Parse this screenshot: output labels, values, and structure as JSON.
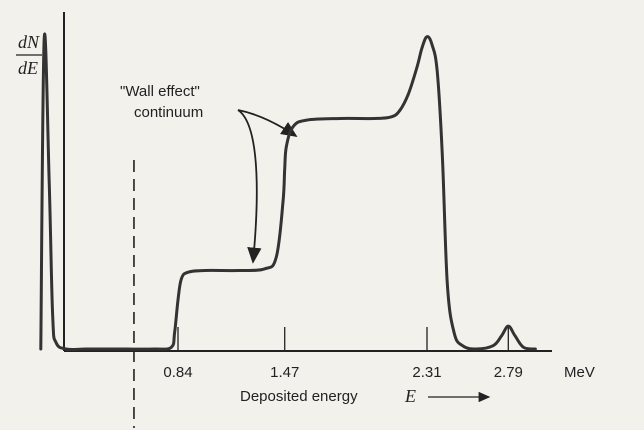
{
  "chart_data": {
    "type": "line",
    "title": "",
    "ylabel_num": "dN",
    "ylabel_den": "dE",
    "xlabel": "Deposited energy",
    "xlabel_symbol": "E",
    "unit": "MeV",
    "ticks": [
      {
        "value": 0.84,
        "label": "0.84"
      },
      {
        "value": 1.47,
        "label": "1.47"
      },
      {
        "value": 2.31,
        "label": "2.31"
      },
      {
        "value": 2.79,
        "label": "2.79"
      }
    ],
    "annotation": {
      "line1": "\"Wall effect\"",
      "line2": "continuum"
    },
    "xlim": [
      -0.0,
      3.1
    ],
    "ylim": [
      0,
      1.0
    ],
    "discriminator_energy": 0.58,
    "series": [
      {
        "x": [
          0.03,
          0.05,
          0.08,
          0.1,
          0.12,
          0.18,
          0.3,
          0.5,
          0.7,
          0.8,
          0.82,
          0.84,
          0.86,
          0.9,
          1.0,
          1.2,
          1.35,
          1.42,
          1.46,
          1.47,
          1.48,
          1.52,
          1.6,
          1.8,
          2.0,
          2.1,
          2.15,
          2.2,
          2.25,
          2.28,
          2.31,
          2.34,
          2.37,
          2.4,
          2.43,
          2.47,
          2.52,
          2.6,
          2.7,
          2.75,
          2.79,
          2.83,
          2.88,
          2.95
        ],
        "y": [
          0.0,
          0.95,
          0.5,
          0.1,
          0.02,
          0.0,
          0.0,
          0.0,
          0.0,
          0.005,
          0.05,
          0.15,
          0.215,
          0.235,
          0.24,
          0.24,
          0.245,
          0.28,
          0.45,
          0.55,
          0.62,
          0.68,
          0.7,
          0.705,
          0.705,
          0.71,
          0.73,
          0.78,
          0.86,
          0.92,
          0.955,
          0.93,
          0.85,
          0.6,
          0.2,
          0.05,
          0.01,
          0.0,
          0.01,
          0.04,
          0.07,
          0.04,
          0.005,
          0.0
        ]
      }
    ]
  }
}
